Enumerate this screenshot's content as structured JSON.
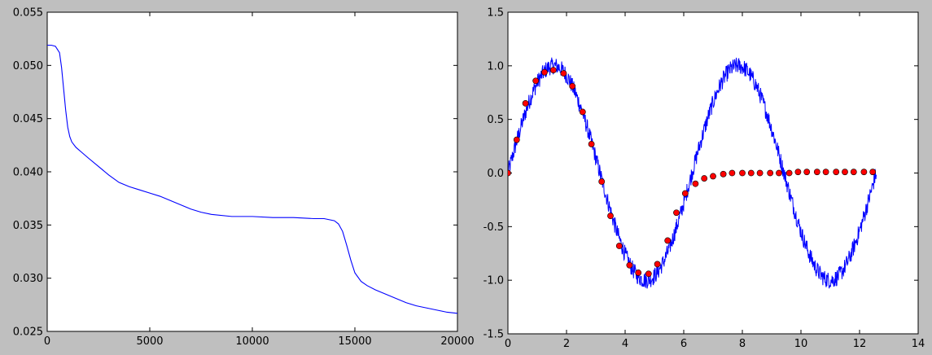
{
  "chart_data": [
    {
      "type": "line",
      "title": "",
      "xlabel": "",
      "ylabel": "",
      "xlim": [
        0,
        20000
      ],
      "ylim": [
        0.025,
        0.055
      ],
      "xticks": [
        0,
        5000,
        10000,
        15000,
        20000
      ],
      "xtick_labels": [
        "0",
        "5000",
        "10000",
        "15000",
        "20000"
      ],
      "yticks": [
        0.025,
        0.03,
        0.035,
        0.04,
        0.045,
        0.05,
        0.055
      ],
      "ytick_labels": [
        "0.025",
        "0.030",
        "0.035",
        "0.040",
        "0.045",
        "0.050",
        "0.055"
      ],
      "grid": false,
      "series": [
        {
          "color": "#0000ff",
          "x": [
            0,
            200,
            400,
            600,
            700,
            800,
            900,
            1000,
            1100,
            1200,
            1400,
            1700,
            2000,
            2500,
            3000,
            3500,
            4000,
            4500,
            5000,
            5500,
            6000,
            6500,
            7000,
            7500,
            8000,
            9000,
            10000,
            11000,
            12000,
            13000,
            13500,
            14000,
            14200,
            14400,
            14600,
            14800,
            15000,
            15300,
            15600,
            16000,
            16500,
            17000,
            17500,
            18000,
            18500,
            19000,
            19500,
            20000
          ],
          "y": [
            0.0519,
            0.0519,
            0.0518,
            0.0512,
            0.0498,
            0.0478,
            0.0458,
            0.0442,
            0.0433,
            0.0428,
            0.0423,
            0.0418,
            0.0413,
            0.0405,
            0.0397,
            0.039,
            0.0386,
            0.0383,
            0.038,
            0.0377,
            0.0373,
            0.0369,
            0.0365,
            0.0362,
            0.036,
            0.0358,
            0.0358,
            0.0357,
            0.0357,
            0.0356,
            0.0356,
            0.0354,
            0.0351,
            0.0344,
            0.0331,
            0.0317,
            0.0305,
            0.0297,
            0.0293,
            0.0289,
            0.0285,
            0.0281,
            0.0277,
            0.0274,
            0.0272,
            0.027,
            0.0268,
            0.0267
          ]
        }
      ]
    },
    {
      "type": "line",
      "title": "",
      "xlabel": "",
      "ylabel": "",
      "xlim": [
        0,
        14
      ],
      "ylim": [
        -1.5,
        1.5
      ],
      "xticks": [
        0,
        2,
        4,
        6,
        8,
        10,
        12,
        14
      ],
      "xtick_labels": [
        "0",
        "2",
        "4",
        "6",
        "8",
        "10",
        "12",
        "14"
      ],
      "yticks": [
        -1.5,
        -1.0,
        -0.5,
        0.0,
        0.5,
        1.0,
        1.5
      ],
      "ytick_labels": [
        "-1.5",
        "-1.0",
        "-0.5",
        "0.0",
        "0.5",
        "1.0",
        "1.5"
      ],
      "grid": false,
      "series": [
        {
          "kind": "noisy_line",
          "color": "#0000ff",
          "function": "sin",
          "x_range": [
            0,
            12.57
          ],
          "samples": 1000,
          "noise_amplitude": 0.08
        },
        {
          "kind": "scatter",
          "color": "#ff0000",
          "x": [
            0.0,
            0.3,
            0.6,
            0.95,
            1.25,
            1.55,
            1.9,
            2.2,
            2.55,
            2.85,
            3.2,
            3.5,
            3.8,
            4.15,
            4.45,
            4.8,
            5.1,
            5.45,
            5.75,
            6.05,
            6.4,
            6.7,
            7.0,
            7.35,
            7.65,
            8.0,
            8.3,
            8.6,
            8.95,
            9.25,
            9.6,
            9.9,
            10.2,
            10.55,
            10.85,
            11.2,
            11.5,
            11.8,
            12.15,
            12.45
          ],
          "y": [
            0.0,
            0.31,
            0.65,
            0.86,
            0.94,
            0.96,
            0.93,
            0.81,
            0.57,
            0.27,
            -0.08,
            -0.4,
            -0.68,
            -0.86,
            -0.93,
            -0.94,
            -0.85,
            -0.63,
            -0.37,
            -0.19,
            -0.1,
            -0.05,
            -0.03,
            -0.01,
            0.0,
            0.0,
            0.0,
            0.0,
            0.0,
            0.0,
            0.0,
            0.01,
            0.01,
            0.01,
            0.01,
            0.01,
            0.01,
            0.01,
            0.01,
            0.01
          ]
        }
      ]
    }
  ]
}
